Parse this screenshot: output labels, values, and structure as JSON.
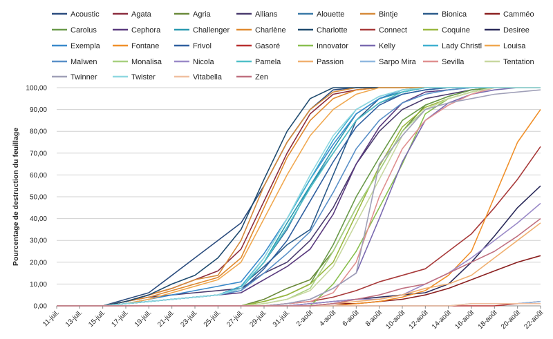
{
  "chart_data": {
    "type": "line",
    "title": "",
    "xlabel": "",
    "ylabel": "Pourcentage de destruction du feuillage",
    "ylim": [
      0,
      100
    ],
    "y_ticks": [
      "0,00",
      "10,00",
      "20,00",
      "30,00",
      "40,00",
      "50,00",
      "60,00",
      "70,00",
      "80,00",
      "90,00",
      "100,00"
    ],
    "categories": [
      "11-juil.",
      "13-juil.",
      "15-juil.",
      "17-juil.",
      "19-juil.",
      "21-juil.",
      "23-juil.",
      "25-juil.",
      "27-juil.",
      "29-juil.",
      "31-juil.",
      "2-août",
      "4-août",
      "6-août",
      "8-août",
      "10-août",
      "12-août",
      "14-août",
      "16-août",
      "18-août",
      "20-août",
      "22-août"
    ],
    "grid": "horizontal",
    "legend_position": "top",
    "series": [
      {
        "name": "Acoustic",
        "color": "#2b4c7e",
        "values": [
          0,
          0,
          0,
          3,
          6,
          14,
          22,
          30,
          38,
          55,
          75,
          90,
          99,
          100,
          100,
          100,
          100,
          100,
          100,
          100,
          100,
          100
        ]
      },
      {
        "name": "Agata",
        "color": "#8b2d3f",
        "values": [
          0,
          0,
          0,
          2,
          5,
          8,
          12,
          16,
          26,
          48,
          70,
          88,
          97,
          99,
          100,
          100,
          100,
          100,
          100,
          100,
          100,
          100
        ]
      },
      {
        "name": "Agria",
        "color": "#6a8a3a",
        "values": [
          0,
          0,
          0,
          0,
          0,
          0,
          0,
          0,
          0,
          3,
          8,
          12,
          25,
          45,
          62,
          80,
          92,
          96,
          99,
          100,
          100,
          100
        ]
      },
      {
        "name": "Allians",
        "color": "#4a3b6e",
        "values": [
          0,
          0,
          0,
          2,
          4,
          5,
          6,
          7,
          8,
          15,
          20,
          30,
          45,
          65,
          80,
          90,
          95,
          97,
          99,
          100,
          100,
          100
        ]
      },
      {
        "name": "Alouette",
        "color": "#3a7aa8",
        "values": [
          0,
          0,
          0,
          1,
          2,
          3,
          4,
          5,
          8,
          20,
          35,
          55,
          70,
          85,
          93,
          97,
          99,
          100,
          100,
          100,
          100,
          100
        ]
      },
      {
        "name": "Bintje",
        "color": "#d68a3a",
        "values": [
          0,
          0,
          0,
          2,
          5,
          8,
          12,
          14,
          30,
          55,
          75,
          90,
          98,
          100,
          100,
          100,
          100,
          100,
          100,
          100,
          100,
          100
        ]
      },
      {
        "name": "Bionica",
        "color": "#2b5a8a",
        "values": [
          0,
          0,
          0,
          1,
          2,
          3,
          4,
          5,
          9,
          18,
          28,
          35,
          60,
          85,
          95,
          98,
          100,
          100,
          100,
          100,
          100,
          100
        ]
      },
      {
        "name": "Camméo",
        "color": "#8b2020",
        "values": [
          0,
          0,
          0,
          0,
          0,
          0,
          0,
          0,
          0,
          0,
          0,
          0,
          1,
          1,
          2,
          3,
          5,
          8,
          12,
          16,
          20,
          23
        ]
      },
      {
        "name": "Carolus",
        "color": "#6a9a4a",
        "values": [
          0,
          0,
          0,
          0,
          0,
          0,
          0,
          0,
          0,
          2,
          5,
          10,
          28,
          50,
          68,
          85,
          92,
          96,
          99,
          100,
          100,
          100
        ]
      },
      {
        "name": "Cephora",
        "color": "#5a3a7e",
        "values": [
          0,
          0,
          0,
          1,
          2,
          3,
          4,
          5,
          6,
          12,
          18,
          26,
          42,
          65,
          82,
          93,
          98,
          99,
          100,
          100,
          100,
          100
        ]
      },
      {
        "name": "Challenger",
        "color": "#2a9ab0",
        "values": [
          0,
          0,
          0,
          1,
          2,
          3,
          4,
          5,
          8,
          20,
          38,
          55,
          72,
          88,
          95,
          98,
          100,
          100,
          100,
          100,
          100,
          100
        ]
      },
      {
        "name": "Charlène",
        "color": "#e08a30",
        "values": [
          0,
          0,
          0,
          2,
          4,
          7,
          10,
          13,
          22,
          45,
          68,
          85,
          95,
          99,
          100,
          100,
          100,
          100,
          100,
          100,
          100,
          100
        ]
      },
      {
        "name": "Charlotte",
        "color": "#1e4a6e",
        "values": [
          0,
          0,
          0,
          2,
          5,
          10,
          14,
          22,
          35,
          58,
          80,
          95,
          100,
          100,
          100,
          100,
          100,
          100,
          100,
          100,
          100,
          100
        ]
      },
      {
        "name": "Connect",
        "color": "#a83a3a",
        "values": [
          0,
          0,
          0,
          0,
          0,
          0,
          0,
          0,
          0,
          0,
          1,
          2,
          4,
          7,
          11,
          14,
          17,
          25,
          33,
          45,
          58,
          73
        ]
      },
      {
        "name": "Coquine",
        "color": "#9ab840",
        "values": [
          0,
          0,
          0,
          0,
          0,
          0,
          0,
          0,
          0,
          2,
          5,
          10,
          20,
          42,
          64,
          82,
          91,
          95,
          98,
          100,
          100,
          100
        ]
      },
      {
        "name": "Desiree",
        "color": "#2a2a5a",
        "values": [
          0,
          0,
          0,
          0,
          0,
          0,
          0,
          0,
          0,
          0,
          0,
          1,
          2,
          3,
          4,
          5,
          6,
          10,
          20,
          32,
          45,
          55
        ]
      },
      {
        "name": "Exempla",
        "color": "#3a8acc",
        "values": [
          0,
          0,
          0,
          1,
          3,
          5,
          7,
          9,
          11,
          24,
          40,
          58,
          74,
          88,
          95,
          99,
          100,
          100,
          100,
          100,
          100,
          100
        ]
      },
      {
        "name": "Fontane",
        "color": "#f0902a",
        "values": [
          0,
          0,
          0,
          0,
          0,
          0,
          0,
          0,
          0,
          0,
          0,
          0,
          0,
          1,
          2,
          4,
          7,
          14,
          25,
          50,
          75,
          90
        ]
      },
      {
        "name": "Frivol",
        "color": "#3060a0",
        "values": [
          0,
          0,
          0,
          1,
          2,
          3,
          4,
          5,
          7,
          17,
          30,
          48,
          66,
          82,
          92,
          97,
          99,
          100,
          100,
          100,
          100,
          100
        ]
      },
      {
        "name": "Gasoré",
        "color": "#b83030",
        "values": [
          0,
          0,
          0,
          0,
          0,
          0,
          0,
          0,
          0,
          0,
          0,
          0,
          0,
          0,
          0,
          0,
          0,
          0,
          0,
          0,
          1,
          2
        ]
      },
      {
        "name": "Innovator",
        "color": "#8ac050",
        "values": [
          0,
          0,
          0,
          0,
          0,
          0,
          0,
          0,
          0,
          0,
          0,
          0,
          10,
          25,
          45,
          65,
          88,
          95,
          98,
          100,
          100,
          100
        ]
      },
      {
        "name": "Kelly",
        "color": "#7a6ab0",
        "values": [
          0,
          0,
          0,
          0,
          0,
          0,
          0,
          0,
          0,
          0,
          1,
          3,
          8,
          15,
          40,
          66,
          85,
          93,
          97,
          99,
          100,
          100
        ]
      },
      {
        "name": "Lady Christl",
        "color": "#40b0d0",
        "values": [
          0,
          0,
          0,
          1,
          2,
          3,
          4,
          5,
          9,
          22,
          40,
          58,
          76,
          90,
          96,
          99,
          100,
          100,
          100,
          100,
          100,
          100
        ]
      },
      {
        "name": "Louisa",
        "color": "#f0a850",
        "values": [
          0,
          0,
          0,
          1,
          3,
          6,
          9,
          12,
          20,
          40,
          60,
          78,
          90,
          97,
          100,
          100,
          100,
          100,
          100,
          100,
          100,
          100
        ]
      },
      {
        "name": "Maïwen",
        "color": "#5a90c8",
        "values": [
          0,
          0,
          0,
          1,
          2,
          3,
          4,
          5,
          7,
          15,
          24,
          34,
          52,
          72,
          85,
          93,
          97,
          99,
          100,
          100,
          100,
          100
        ]
      },
      {
        "name": "Monalisa",
        "color": "#a8d080",
        "values": [
          0,
          0,
          0,
          0,
          0,
          0,
          0,
          0,
          0,
          1,
          3,
          8,
          25,
          45,
          62,
          80,
          90,
          95,
          98,
          100,
          100,
          100
        ]
      },
      {
        "name": "Nicola",
        "color": "#9a8ac8",
        "values": [
          0,
          0,
          0,
          0,
          0,
          0,
          0,
          0,
          0,
          0,
          0,
          1,
          2,
          3,
          3,
          5,
          10,
          15,
          22,
          30,
          38,
          47
        ]
      },
      {
        "name": "Pamela",
        "color": "#50c0c8",
        "values": [
          0,
          0,
          0,
          1,
          2,
          3,
          4,
          5,
          8,
          20,
          36,
          54,
          70,
          85,
          93,
          98,
          100,
          100,
          100,
          100,
          100,
          100
        ]
      },
      {
        "name": "Passion",
        "color": "#f0b070",
        "values": [
          0,
          0,
          0,
          0,
          0,
          0,
          0,
          0,
          0,
          0,
          0,
          0,
          1,
          2,
          3,
          5,
          8,
          10,
          14,
          22,
          30,
          38
        ]
      },
      {
        "name": "Sarpo Mira",
        "color": "#90b8e0",
        "values": [
          0,
          0,
          0,
          0,
          0,
          0,
          0,
          0,
          0,
          0,
          0,
          0,
          0,
          0,
          0,
          0,
          0,
          0,
          1,
          1,
          1,
          2
        ]
      },
      {
        "name": "Sevilla",
        "color": "#e09090",
        "values": [
          0,
          0,
          0,
          0,
          0,
          0,
          0,
          0,
          0,
          0,
          1,
          2,
          6,
          20,
          50,
          72,
          85,
          92,
          97,
          100,
          100,
          100
        ]
      },
      {
        "name": "Tentation",
        "color": "#c8d8a0",
        "values": [
          0,
          0,
          0,
          0,
          0,
          0,
          0,
          0,
          0,
          1,
          3,
          7,
          18,
          38,
          58,
          78,
          90,
          95,
          98,
          100,
          100,
          100
        ]
      },
      {
        "name": "Twinner",
        "color": "#a0a0b8",
        "values": [
          0,
          0,
          0,
          0,
          0,
          0,
          0,
          0,
          0,
          0,
          1,
          3,
          8,
          15,
          65,
          78,
          90,
          93,
          95,
          97,
          98,
          99
        ]
      },
      {
        "name": "Twister",
        "color": "#90d8e0",
        "values": [
          0,
          0,
          0,
          1,
          2,
          3,
          4,
          5,
          8,
          22,
          40,
          60,
          78,
          90,
          96,
          99,
          100,
          100,
          100,
          100,
          100,
          100
        ]
      },
      {
        "name": "Vitabella",
        "color": "#f0c0a0",
        "values": [
          0,
          0,
          0,
          0,
          0,
          0,
          0,
          0,
          0,
          0,
          0,
          0,
          0,
          0,
          0,
          0,
          0,
          0,
          1,
          1,
          1,
          1
        ]
      },
      {
        "name": "Zen",
        "color": "#c07080",
        "values": [
          0,
          0,
          0,
          0,
          0,
          0,
          0,
          0,
          0,
          0,
          0,
          0,
          1,
          3,
          5,
          8,
          10,
          15,
          20,
          25,
          32,
          40
        ]
      }
    ]
  }
}
